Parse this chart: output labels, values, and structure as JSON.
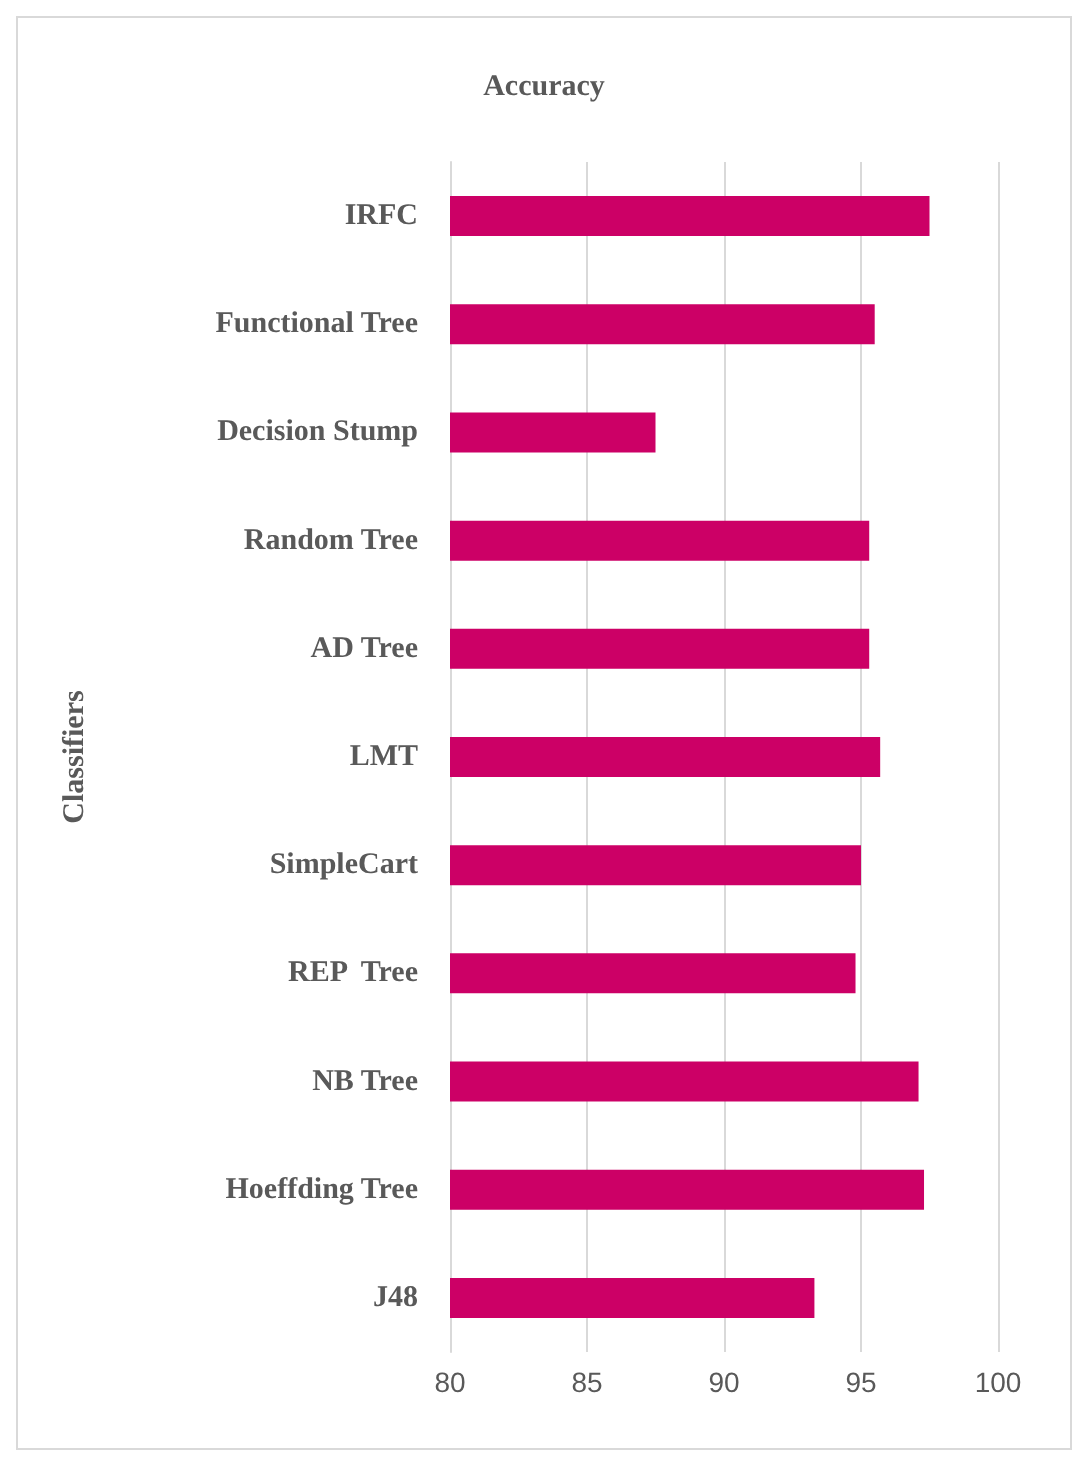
{
  "chart_data": {
    "type": "bar",
    "orientation": "horizontal",
    "title": "Accuracy",
    "ylabel": "Classifiers",
    "categories": [
      "IRFC",
      "Functional Tree",
      "Decision Stump",
      "Random Tree",
      "AD Tree",
      "LMT",
      "SimpleCart",
      "REP  Tree",
      "NB Tree",
      "Hoeffding Tree",
      "J48"
    ],
    "values": [
      97.5,
      95.5,
      87.5,
      95.3,
      95.3,
      95.7,
      95.0,
      94.8,
      97.1,
      97.3,
      93.3
    ],
    "color": "#cc0066",
    "xlim": [
      80,
      100
    ],
    "xticks": [
      80,
      85,
      90,
      95,
      100
    ],
    "grid": "x"
  }
}
